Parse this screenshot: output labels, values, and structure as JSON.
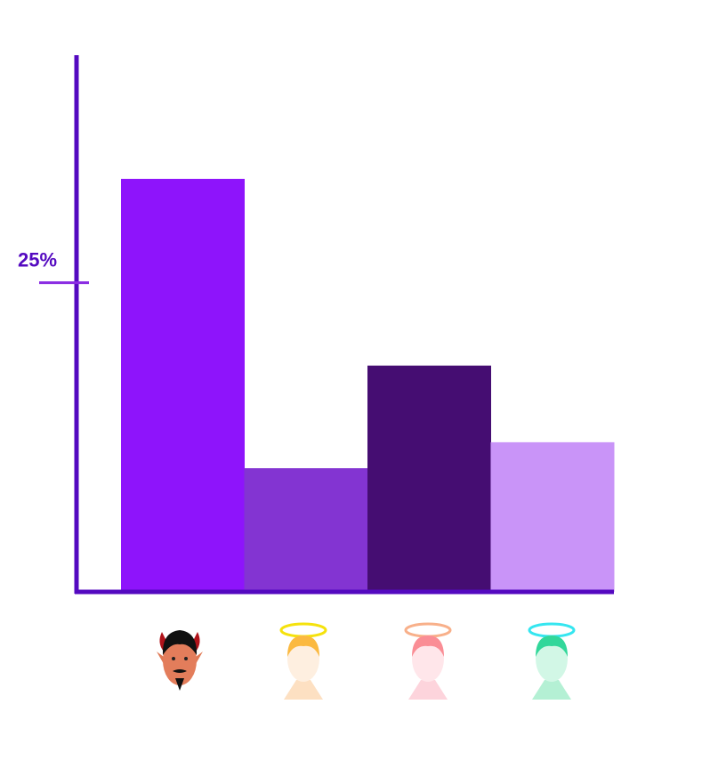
{
  "chart_data": {
    "type": "bar",
    "categories": [
      null,
      null,
      null,
      null
    ],
    "values": [
      33.4,
      10.0,
      18.3,
      12.1
    ],
    "colors": [
      "#8e14fb",
      "#8334d2",
      "#450d72",
      "#c994f8"
    ],
    "ylim": [
      0,
      43.4
    ],
    "yticks": [
      {
        "value": 25,
        "label": "25%"
      }
    ],
    "axis_color": "#5409c0"
  }
}
